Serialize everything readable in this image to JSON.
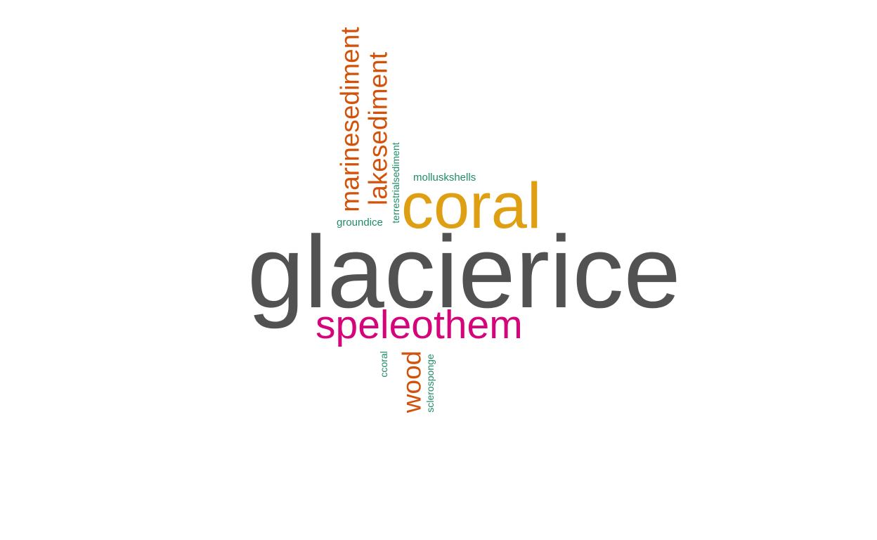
{
  "colors": {
    "gray": "#525252",
    "gold": "#DE9F12",
    "magenta": "#D5047A",
    "orange": "#D2520A",
    "green": "#1F8C68",
    "background": "#FFFFFF"
  },
  "words": {
    "glacierice": "glacierice",
    "speleothem": "speleothem",
    "coral": "coral",
    "mollusk_shells": "molluskshells",
    "ground_ice": "groundice",
    "marine_sediment": "marinesediment",
    "lake_sediment": "lakesediment",
    "terrestrial_sediment": "terrestrialsediment",
    "wood": "wood",
    "ccoral": "ccoral",
    "sclerosponge": "sclerosponge"
  }
}
